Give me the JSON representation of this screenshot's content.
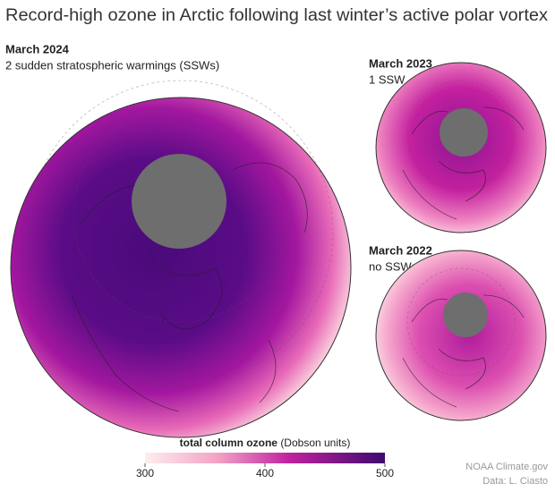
{
  "header": {
    "title": "Record-high ozone in Arctic following last winter’s active polar vortex"
  },
  "panels": [
    {
      "title": "March 2024",
      "subtitle": "2 sudden stratospheric warmings (SSWs)"
    },
    {
      "title": "March 2023",
      "subtitle": "1 SSW"
    },
    {
      "title": "March 2022",
      "subtitle": "no SSWs"
    }
  ],
  "colorbar": {
    "label_bold": "total column ozone",
    "label_rest": "(Dobson units)",
    "range": [
      300,
      500
    ],
    "ticks": [
      300,
      400,
      500
    ]
  },
  "credits": {
    "source": "NOAA Climate.gov",
    "data": "Data: L. Ciasto"
  }
}
